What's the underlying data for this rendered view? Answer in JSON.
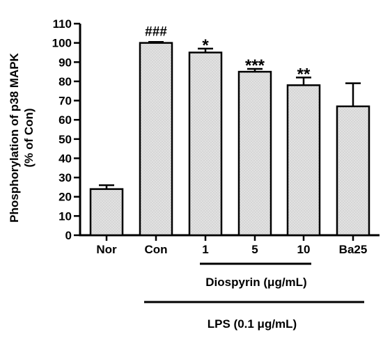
{
  "chart_data": {
    "type": "bar",
    "title": "",
    "ylabel_line1": "Phosphorylation of p38 MAPK",
    "ylabel_line2": "(% of Con)",
    "ylim": [
      0,
      110
    ],
    "yticks": [
      0,
      10,
      20,
      30,
      40,
      50,
      60,
      70,
      80,
      90,
      100,
      110
    ],
    "categories": [
      "Nor",
      "Con",
      "1",
      "5",
      "10",
      "Ba25"
    ],
    "values": [
      24,
      100,
      95,
      85,
      78,
      67
    ],
    "errors": [
      2,
      0.5,
      2,
      1.5,
      4,
      12
    ],
    "significance": [
      "",
      "###",
      "*",
      "***",
      "**",
      ""
    ],
    "bar_fill": "#d9d9d9",
    "bar_stroke": "#000000",
    "group_labels": {
      "diospyrin": "Diospyrin (μg/mL)",
      "lps": "LPS (0.1 μg/mL)"
    }
  }
}
